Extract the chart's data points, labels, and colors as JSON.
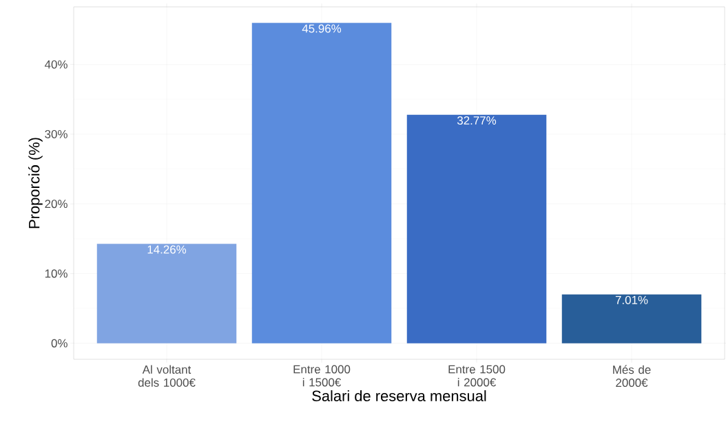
{
  "chart_data": {
    "type": "bar",
    "xlabel": "Salari de reserva mensual",
    "ylabel": "Proporció (%)",
    "categories": [
      "Al voltant dels 1000€",
      "Entre 1000 i 1500€",
      "Entre 1500 i 2000€",
      "Més de 2000€"
    ],
    "values": [
      14.26,
      45.96,
      32.77,
      7.01
    ],
    "value_labels": [
      "14.26%",
      "45.96%",
      "32.77%",
      "7.01%"
    ],
    "colors": [
      "#80a4e2",
      "#5b8cdd",
      "#3a6cc4",
      "#285e99"
    ],
    "ylim": [
      -2.3,
      48.26
    ],
    "yticks": [
      {
        "value": 0,
        "label": "0%"
      },
      {
        "value": 10,
        "label": "10%"
      },
      {
        "value": 20,
        "label": "20%"
      },
      {
        "value": 30,
        "label": "30%"
      },
      {
        "value": 40,
        "label": "40%"
      }
    ],
    "grid": true
  }
}
